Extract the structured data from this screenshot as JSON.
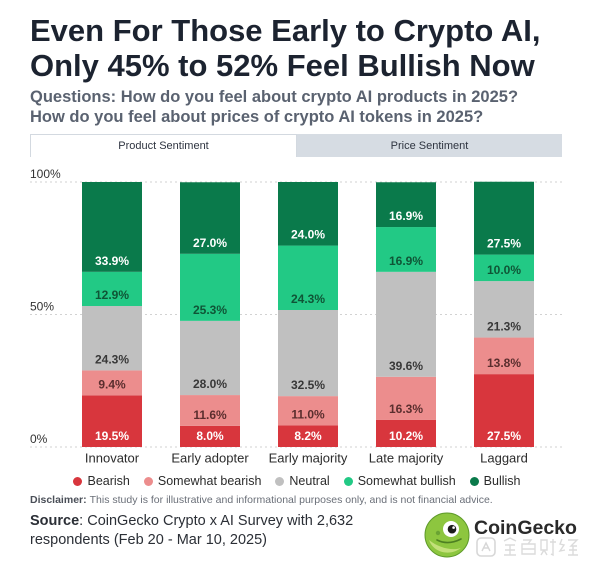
{
  "chart_data": {
    "type": "bar",
    "stacked": true,
    "title": "Even For Those Early to Crypto AI, Only 45% to 52% Feel Bullish Now",
    "subtitle": "Questions: How do you feel about crypto AI products in 2025? How do you feel about prices of crypto AI tokens in 2025?",
    "categories": [
      "Innovator",
      "Early adopter",
      "Early majority",
      "Late majority",
      "Laggard"
    ],
    "series": [
      {
        "name": "Bearish",
        "color": "#d8363d",
        "label_color": "#ffffff",
        "values": [
          19.5,
          8.0,
          8.2,
          10.2,
          27.5
        ]
      },
      {
        "name": "Somewhat bearish",
        "color": "#ec8d8d",
        "label_color": "#5a2e2e",
        "values": [
          9.4,
          11.6,
          11.0,
          16.3,
          13.8
        ]
      },
      {
        "name": "Neutral",
        "color": "#c0c0c0",
        "label_color": "#383838",
        "values": [
          24.3,
          28.0,
          32.5,
          39.6,
          21.3
        ]
      },
      {
        "name": "Somewhat bullish",
        "color": "#22c985",
        "label_color": "#0f5536",
        "values": [
          12.9,
          25.3,
          24.3,
          16.9,
          10.0
        ]
      },
      {
        "name": "Bullish",
        "color": "#0a7a4b",
        "label_color": "#ffffff",
        "values": [
          33.9,
          27.0,
          24.0,
          16.9,
          27.5
        ]
      }
    ],
    "unit": "%",
    "ylim": [
      0,
      100
    ],
    "yticks": [
      0,
      50,
      100
    ],
    "ytick_labels": [
      "0%",
      "50%",
      "100%"
    ],
    "grid": true,
    "legend": "bottom"
  },
  "tabs": [
    {
      "label": "Product Sentiment",
      "active": true
    },
    {
      "label": "Price Sentiment",
      "active": false
    }
  ],
  "disclaimer": {
    "label": "Disclaimer:",
    "text": "This study is for illustrative and informational purposes only, and is not financial advice."
  },
  "source": {
    "label": "Source",
    "text": ": CoinGecko Crypto x AI Survey with 2,632 respondents (Feb 20 - Mar 10, 2025)"
  },
  "brand": {
    "name": "CoinGecko",
    "icon": "gecko-icon",
    "color": "#8dc63f"
  },
  "watermark": {
    "text": "金色财经",
    "icon": "jinse-logo-icon"
  }
}
